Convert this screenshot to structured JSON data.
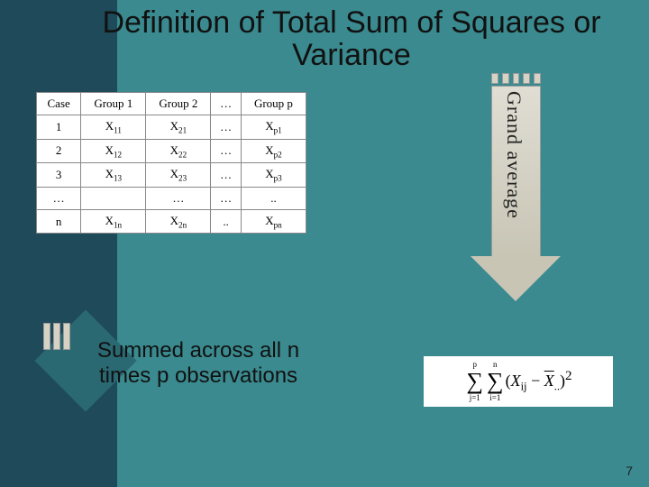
{
  "title": "Definition of Total Sum of Squares or Variance",
  "table": {
    "headers": [
      "Case",
      "Group 1",
      "Group 2",
      "…",
      "Group p"
    ],
    "rows": [
      [
        "1",
        "X<sub>11</sub>",
        "X<sub>21</sub>",
        "…",
        "X<sub>p1</sub>"
      ],
      [
        "2",
        "X<sub>12</sub>",
        "X<sub>22</sub>",
        "…",
        "X<sub>p2</sub>"
      ],
      [
        "3",
        "X<sub>13</sub>",
        "X<sub>23</sub>",
        "…",
        "X<sub>p3</sub>"
      ],
      [
        "…",
        "",
        "…",
        "…",
        ".."
      ],
      [
        "n",
        "X<sub>1n</sub>",
        "X<sub>2n</sub>",
        "..",
        "X<sub>pn</sub>"
      ]
    ]
  },
  "arrow_label": "Grand average",
  "caption": "Summed across all n times p observations",
  "formula": {
    "outer_top": "p",
    "outer_bottom": "j=1",
    "inner_top": "n",
    "inner_bottom": "i=1",
    "body_lhs": "X",
    "body_lhs_sub": "ij",
    "minus": "−",
    "body_rhs": "X",
    "body_rhs_sub": "..",
    "power": "2"
  },
  "page_number": "7",
  "colors": {
    "bg_teal": "#3a8a8f",
    "bg_dark": "#1e4a5a",
    "arrow_fill": "#d6d3c5"
  }
}
